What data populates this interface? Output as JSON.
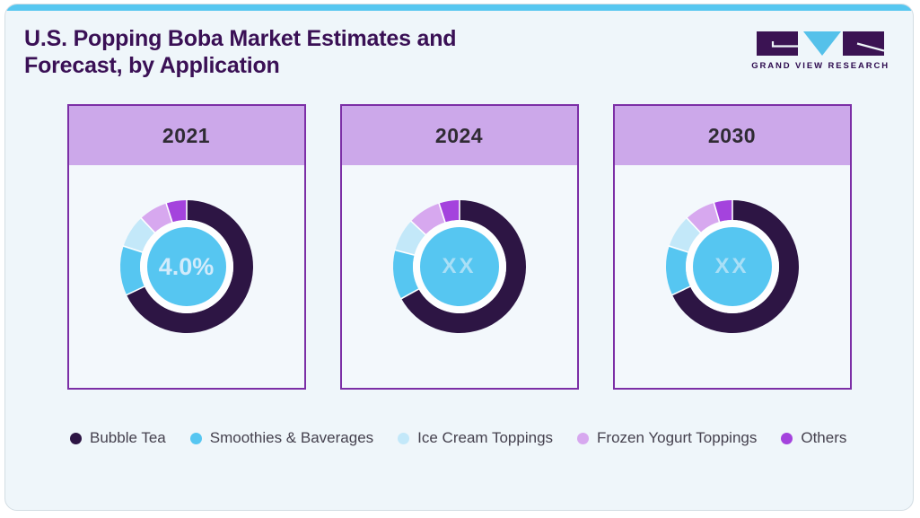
{
  "page": {
    "title_line1": "U.S. Popping Boba Market Estimates and",
    "title_line2": "Forecast, by Application"
  },
  "logo": {
    "text": "GRAND VIEW RESEARCH",
    "icon": "gvr-logo-mark",
    "colors": {
      "dark": "#3b1353",
      "blue": "#55c1ea",
      "text": "#2d0a4e"
    }
  },
  "colors": {
    "top_accent_bar": "#57c7f0",
    "panel_background": "#eff6fa",
    "card_background": "#f3f8fc",
    "card_border": "#7c2fa6",
    "card_header_background": "#cca8ea",
    "title_text": "#3a1055",
    "donut_inner_ring": "#fdfeff",
    "donut_center_circle": "#56c6f1"
  },
  "legend": [
    {
      "label": "Bubble Tea",
      "color": "#2d1544"
    },
    {
      "label": "Smoothies & Baverages",
      "color": "#56c6f1"
    },
    {
      "label": "Ice Cream Toppings",
      "color": "#c3e8f9"
    },
    {
      "label": "Frozen Yogurt Toppings",
      "color": "#d7a8ef"
    },
    {
      "label": "Others",
      "color": "#a443dd"
    }
  ],
  "chart_data": {
    "type": "pie",
    "subtype": "donut",
    "title": "U.S. Popping Boba Market Estimates and Forecast, by Application",
    "legend_position": "bottom",
    "start_angle": "top",
    "direction": "clockwise",
    "categories": [
      "Bubble Tea",
      "Smoothies & Baverages",
      "Ice Cream Toppings",
      "Frozen Yogurt Toppings",
      "Others"
    ],
    "colors": [
      "#2d1544",
      "#56c6f1",
      "#c3e8f9",
      "#d7a8ef",
      "#a443dd"
    ],
    "donuts": [
      {
        "year": "2021",
        "center_label": "4.0%",
        "values": [
          68,
          12,
          8,
          7,
          5
        ]
      },
      {
        "year": "2024",
        "center_label": "XX",
        "values": [
          67,
          12,
          8,
          8,
          5
        ]
      },
      {
        "year": "2030",
        "center_label": "XX",
        "values": [
          68,
          12,
          8,
          7.5,
          4.5
        ]
      }
    ]
  }
}
